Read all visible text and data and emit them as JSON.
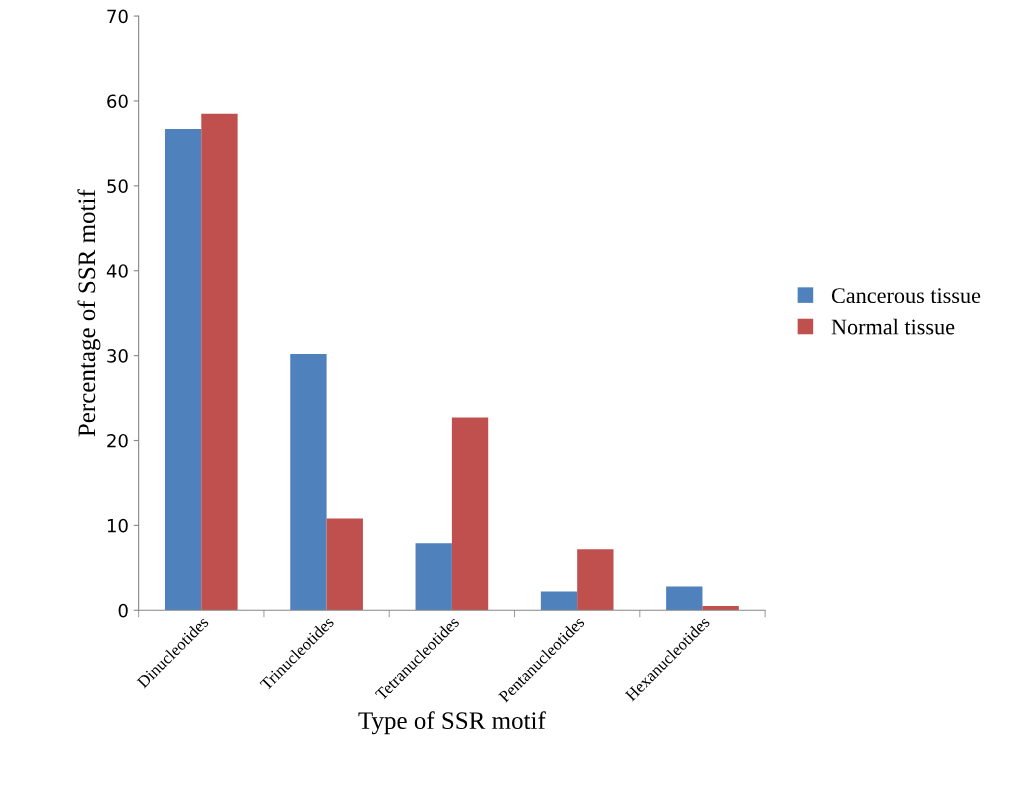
{
  "chart_data": {
    "type": "bar",
    "xlabel": "Type of SSR motif",
    "ylabel": "Percentage of SSR motif",
    "categories": [
      "Dinucleotides",
      "Trinucleotides",
      "Tetranucleotides",
      "Pentanucleotides",
      "Hexanucleotides"
    ],
    "series": [
      {
        "name": "Cancerous tissue",
        "color": "#4f81bd",
        "values": [
          56.7,
          30.2,
          7.9,
          2.2,
          2.8
        ]
      },
      {
        "name": "Normal tissue",
        "color": "#c0504d",
        "values": [
          58.5,
          10.8,
          22.7,
          7.2,
          0.5
        ]
      }
    ],
    "ylim": [
      0,
      70
    ],
    "yticks": [
      0,
      10,
      20,
      30,
      40,
      50,
      60,
      70
    ],
    "grid": false,
    "legend": "right"
  }
}
